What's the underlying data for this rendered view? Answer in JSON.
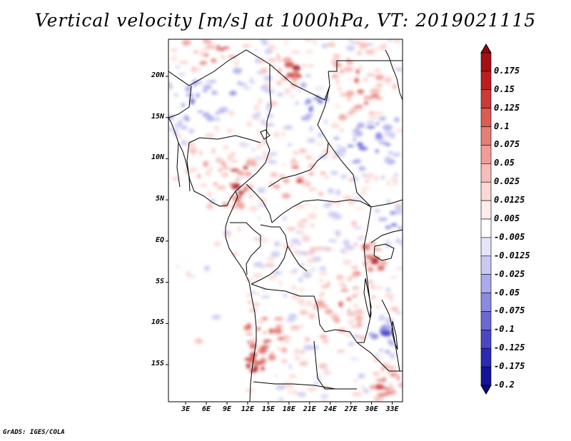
{
  "title": "Vertical velocity [m/s] at 1000hPa, VT: 2019021115",
  "credit": "GrADS: IGES/COLA",
  "map": {
    "lat_range": [
      -19.5,
      24.5
    ],
    "lon_range": [
      0.5,
      34.5
    ],
    "lat_ticks": [
      {
        "value": 20,
        "label": "20N"
      },
      {
        "value": 15,
        "label": "15N"
      },
      {
        "value": 10,
        "label": "10N"
      },
      {
        "value": 5,
        "label": "5N"
      },
      {
        "value": 0,
        "label": "EQ"
      },
      {
        "value": -5,
        "label": "5S"
      },
      {
        "value": -10,
        "label": "10S"
      },
      {
        "value": -15,
        "label": "15S"
      }
    ],
    "lon_ticks": [
      {
        "value": 3,
        "label": "3E"
      },
      {
        "value": 6,
        "label": "6E"
      },
      {
        "value": 9,
        "label": "9E"
      },
      {
        "value": 12,
        "label": "12E"
      },
      {
        "value": 15,
        "label": "15E"
      },
      {
        "value": 18,
        "label": "18E"
      },
      {
        "value": 21,
        "label": "21E"
      },
      {
        "value": 24,
        "label": "24E"
      },
      {
        "value": 27,
        "label": "27E"
      },
      {
        "value": 30,
        "label": "30E"
      },
      {
        "value": 33,
        "label": "33E"
      }
    ]
  },
  "colorbar": {
    "levels": [
      {
        "label": "0.175",
        "color": "#a50f15"
      },
      {
        "label": "0.15",
        "color": "#bb1d21"
      },
      {
        "label": "0.125",
        "color": "#cb3a36"
      },
      {
        "label": "0.1",
        "color": "#dc5c53"
      },
      {
        "label": "0.075",
        "color": "#e57e76"
      },
      {
        "label": "0.05",
        "color": "#f09d97"
      },
      {
        "label": "0.025",
        "color": "#f7bdb8"
      },
      {
        "label": "0.0125",
        "color": "#fbd8d5"
      },
      {
        "label": "0.005",
        "color": "#fdeceb"
      },
      {
        "label": "-0.005",
        "color": "#ffffff"
      },
      {
        "label": "-0.0125",
        "color": "#e4e4fa"
      },
      {
        "label": "-0.025",
        "color": "#c9c9f3"
      },
      {
        "label": "-0.05",
        "color": "#aaaaec"
      },
      {
        "label": "-0.075",
        "color": "#8a8ae1"
      },
      {
        "label": "-0.1",
        "color": "#6a6ad4"
      },
      {
        "label": "-0.125",
        "color": "#4848c6"
      },
      {
        "label": "-0.175",
        "color": "#2a2ab2"
      },
      {
        "label": "-0.2",
        "color": "#141496"
      }
    ],
    "over_color": "#99000d",
    "under_color": "#0a0a80"
  }
}
